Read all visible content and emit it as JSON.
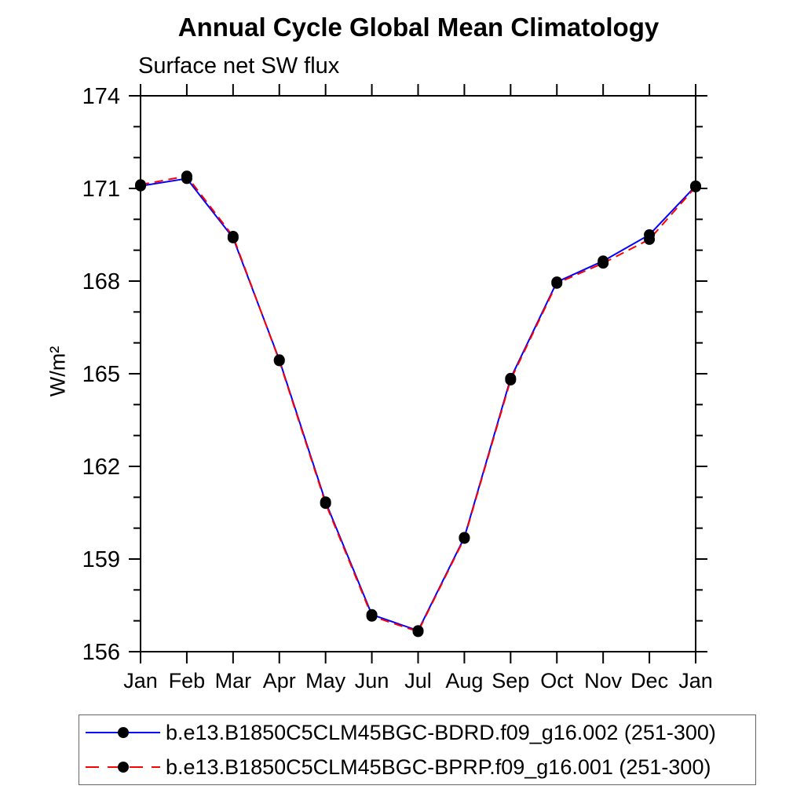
{
  "chart_data": {
    "type": "line",
    "title": "Annual Cycle Global Mean Climatology",
    "subtitle": "Surface net SW flux",
    "ylabel": "W/m²",
    "xlabel": "",
    "x_categories": [
      "Jan",
      "Feb",
      "Mar",
      "Apr",
      "May",
      "Jun",
      "Jul",
      "Aug",
      "Sep",
      "Oct",
      "Nov",
      "Dec",
      "Jan"
    ],
    "ylim": [
      156,
      174
    ],
    "y_major_ticks": [
      156,
      159,
      162,
      165,
      168,
      171,
      174
    ],
    "y_minor_step": 1,
    "grid": false,
    "legend_position": "bottom",
    "marker": {
      "shape": "circle",
      "color": "#000000"
    },
    "axis_color": "#000000",
    "series": [
      {
        "name": "b.e13.B1850C5CLM45BGC-BDRD.f09_g16.002 (251-300)",
        "color": "#0000ff",
        "style": "solid",
        "values": [
          171.08,
          171.32,
          169.4,
          165.45,
          160.85,
          157.2,
          156.68,
          159.7,
          164.85,
          167.97,
          168.65,
          169.5,
          171.08
        ]
      },
      {
        "name": "b.e13.B1850C5CLM45BGC-BPRP.f09_g16.001 (251-300)",
        "color": "#ff0000",
        "style": "dashed",
        "values": [
          171.12,
          171.4,
          169.45,
          165.42,
          160.8,
          157.15,
          156.65,
          159.67,
          164.8,
          167.93,
          168.58,
          169.35,
          171.05
        ]
      }
    ]
  }
}
